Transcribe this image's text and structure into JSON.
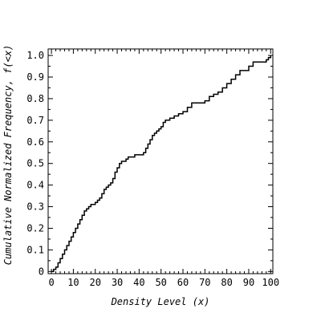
{
  "chart_data": {
    "type": "line",
    "step": true,
    "xlabel": "Density Level (x)",
    "ylabel": "Cumulative Normalized Frequency, f(<x)",
    "xlim": [
      -1.5,
      101
    ],
    "ylim": [
      -0.01,
      1.03
    ],
    "xticks": [
      0,
      10,
      20,
      30,
      40,
      50,
      60,
      70,
      80,
      90,
      100
    ],
    "xtick_labels": [
      "0",
      "10",
      "20",
      "30",
      "40",
      "50",
      "60",
      "70",
      "80",
      "90",
      "100"
    ],
    "yticks": [
      0,
      0.1,
      0.2,
      0.3,
      0.4,
      0.5,
      0.6,
      0.7,
      0.8,
      0.9,
      1.0
    ],
    "ytick_labels": [
      "0",
      "0.1",
      "0.2",
      "0.3",
      "0.4",
      "0.5",
      "0.6",
      "0.7",
      "0.8",
      "0.9",
      "1.0"
    ],
    "grid": false,
    "series": [
      {
        "color": "#000000",
        "x": [
          0,
          1,
          2,
          3,
          4,
          5,
          6,
          7,
          8,
          9,
          10,
          11,
          12,
          13,
          14,
          15,
          16,
          17,
          18,
          19,
          20,
          21,
          22,
          23,
          24,
          25,
          26,
          27,
          28,
          29,
          30,
          31,
          32,
          33,
          34,
          35,
          36,
          38,
          40,
          42,
          43,
          44,
          45,
          46,
          47,
          48,
          49,
          50,
          51,
          52,
          54,
          56,
          58,
          60,
          62,
          64,
          70,
          72,
          74,
          76,
          78,
          80,
          82,
          84,
          86,
          88,
          90,
          92,
          98,
          99,
          100
        ],
        "y": [
          0.0,
          0.01,
          0.02,
          0.04,
          0.06,
          0.08,
          0.1,
          0.12,
          0.14,
          0.16,
          0.18,
          0.2,
          0.22,
          0.24,
          0.26,
          0.28,
          0.29,
          0.3,
          0.31,
          0.31,
          0.32,
          0.33,
          0.34,
          0.36,
          0.38,
          0.39,
          0.4,
          0.41,
          0.43,
          0.46,
          0.48,
          0.5,
          0.51,
          0.51,
          0.52,
          0.53,
          0.53,
          0.54,
          0.54,
          0.55,
          0.57,
          0.59,
          0.61,
          0.63,
          0.64,
          0.65,
          0.66,
          0.67,
          0.69,
          0.7,
          0.71,
          0.72,
          0.73,
          0.74,
          0.76,
          0.78,
          0.79,
          0.81,
          0.82,
          0.83,
          0.85,
          0.87,
          0.89,
          0.91,
          0.93,
          0.93,
          0.95,
          0.97,
          0.98,
          0.99,
          1.0
        ]
      }
    ]
  }
}
